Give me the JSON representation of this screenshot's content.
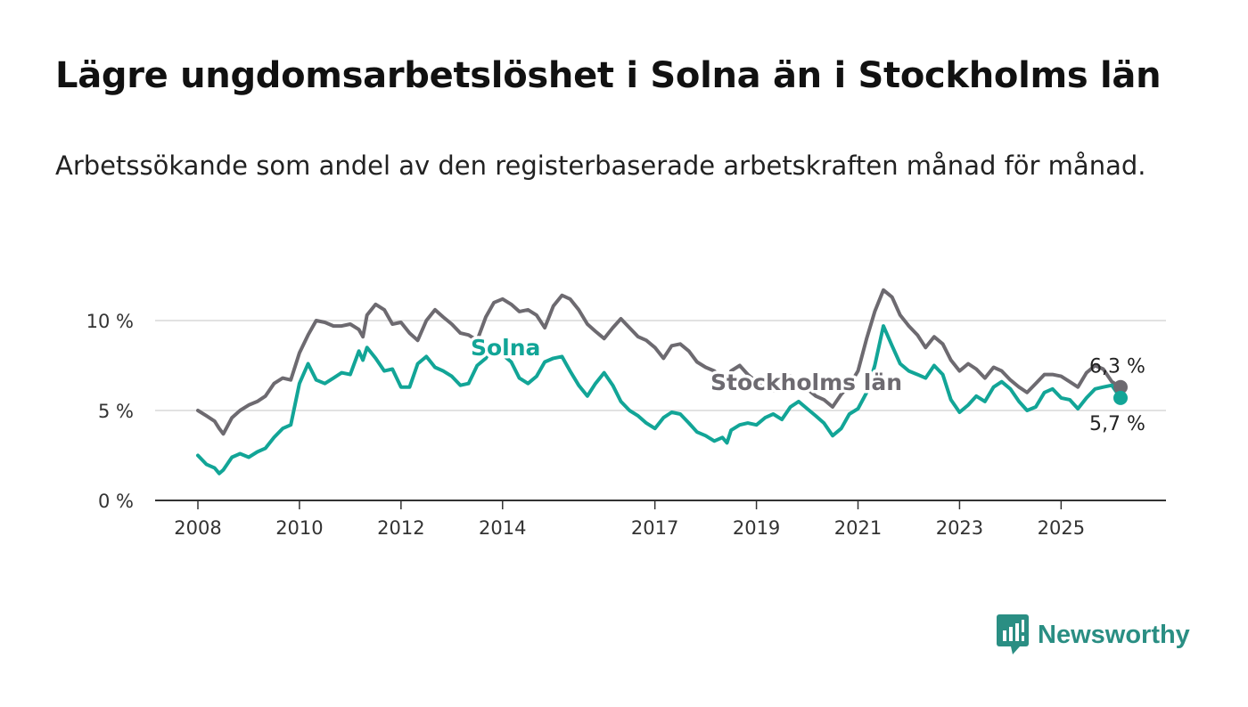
{
  "title": "Lägre ungdomsarbetslöshet i Solna än i Stockholms län",
  "subtitle": "Arbetssökande som andel av den registerbaserade arbetskraften månad för månad.",
  "brand": {
    "name": "Newsworthy",
    "icon": "newsworthy-logo-icon"
  },
  "colors": {
    "solna": "#12a597",
    "stockholm": "#6d6a70",
    "grid": "#d9d9d9",
    "axis": "#333333"
  },
  "chart_data": {
    "type": "line",
    "xlabel": "",
    "ylabel": "",
    "xlim": [
      2007.5,
      2026.2
    ],
    "ylim": [
      0,
      10.5
    ],
    "x_ticks": [
      2008,
      2010,
      2012,
      2014,
      2017,
      2019,
      2021,
      2023,
      2025
    ],
    "x_tick_labels": [
      "2008",
      "2010",
      "2012",
      "2014",
      "2017",
      "2019",
      "2021",
      "2023",
      "2025"
    ],
    "y_ticks": [
      0,
      5,
      10
    ],
    "y_tick_labels": [
      "0 %",
      "5 %",
      "10 %"
    ],
    "grid": "horizontal",
    "legend": "inline",
    "series": [
      {
        "name": "Stockholms län",
        "color": "#6d6a70",
        "end_label": "6,3 %",
        "points": [
          [
            2008.0,
            5.0
          ],
          [
            2008.17,
            4.7
          ],
          [
            2008.33,
            4.4
          ],
          [
            2008.42,
            4.0
          ],
          [
            2008.5,
            3.7
          ],
          [
            2008.67,
            4.6
          ],
          [
            2008.83,
            5.0
          ],
          [
            2009.0,
            5.3
          ],
          [
            2009.17,
            5.5
          ],
          [
            2009.33,
            5.8
          ],
          [
            2009.5,
            6.5
          ],
          [
            2009.67,
            6.8
          ],
          [
            2009.83,
            6.7
          ],
          [
            2010.0,
            8.2
          ],
          [
            2010.17,
            9.2
          ],
          [
            2010.33,
            10.0
          ],
          [
            2010.5,
            9.9
          ],
          [
            2010.67,
            9.7
          ],
          [
            2010.83,
            9.7
          ],
          [
            2011.0,
            9.8
          ],
          [
            2011.17,
            9.5
          ],
          [
            2011.25,
            9.1
          ],
          [
            2011.33,
            10.3
          ],
          [
            2011.5,
            10.9
          ],
          [
            2011.67,
            10.6
          ],
          [
            2011.83,
            9.8
          ],
          [
            2012.0,
            9.9
          ],
          [
            2012.17,
            9.3
          ],
          [
            2012.33,
            8.9
          ],
          [
            2012.5,
            10.0
          ],
          [
            2012.67,
            10.6
          ],
          [
            2012.83,
            10.2
          ],
          [
            2013.0,
            9.8
          ],
          [
            2013.17,
            9.3
          ],
          [
            2013.33,
            9.2
          ],
          [
            2013.5,
            8.9
          ],
          [
            2013.67,
            10.2
          ],
          [
            2013.83,
            11.0
          ],
          [
            2014.0,
            11.2
          ],
          [
            2014.17,
            10.9
          ],
          [
            2014.33,
            10.5
          ],
          [
            2014.5,
            10.6
          ],
          [
            2014.67,
            10.3
          ],
          [
            2014.83,
            9.6
          ],
          [
            2015.0,
            10.8
          ],
          [
            2015.17,
            11.4
          ],
          [
            2015.33,
            11.2
          ],
          [
            2015.5,
            10.6
          ],
          [
            2015.67,
            9.8
          ],
          [
            2015.83,
            9.4
          ],
          [
            2016.0,
            9.0
          ],
          [
            2016.17,
            9.6
          ],
          [
            2016.33,
            10.1
          ],
          [
            2016.5,
            9.6
          ],
          [
            2016.67,
            9.1
          ],
          [
            2016.83,
            8.9
          ],
          [
            2017.0,
            8.5
          ],
          [
            2017.17,
            7.9
          ],
          [
            2017.33,
            8.6
          ],
          [
            2017.5,
            8.7
          ],
          [
            2017.67,
            8.3
          ],
          [
            2017.83,
            7.7
          ],
          [
            2018.0,
            7.4
          ],
          [
            2018.17,
            7.2
          ],
          [
            2018.33,
            6.8
          ],
          [
            2018.42,
            6.5
          ],
          [
            2018.5,
            7.2
          ],
          [
            2018.67,
            7.5
          ],
          [
            2018.83,
            7.0
          ],
          [
            2019.0,
            6.6
          ],
          [
            2019.17,
            6.3
          ],
          [
            2019.33,
            6.1
          ],
          [
            2019.5,
            6.6
          ],
          [
            2019.67,
            6.9
          ],
          [
            2019.83,
            6.5
          ],
          [
            2020.0,
            6.2
          ],
          [
            2020.17,
            5.8
          ],
          [
            2020.33,
            5.6
          ],
          [
            2020.5,
            5.2
          ],
          [
            2020.67,
            5.9
          ],
          [
            2020.83,
            6.4
          ],
          [
            2021.0,
            7.2
          ],
          [
            2021.17,
            9.0
          ],
          [
            2021.33,
            10.5
          ],
          [
            2021.5,
            11.7
          ],
          [
            2021.67,
            11.3
          ],
          [
            2021.83,
            10.3
          ],
          [
            2022.0,
            9.7
          ],
          [
            2022.17,
            9.2
          ],
          [
            2022.33,
            8.5
          ],
          [
            2022.5,
            9.1
          ],
          [
            2022.67,
            8.7
          ],
          [
            2022.83,
            7.8
          ],
          [
            2023.0,
            7.2
          ],
          [
            2023.17,
            7.6
          ],
          [
            2023.33,
            7.3
          ],
          [
            2023.5,
            6.8
          ],
          [
            2023.67,
            7.4
          ],
          [
            2023.83,
            7.2
          ],
          [
            2024.0,
            6.7
          ],
          [
            2024.17,
            6.3
          ],
          [
            2024.33,
            6.0
          ],
          [
            2024.5,
            6.5
          ],
          [
            2024.67,
            7.0
          ],
          [
            2024.83,
            7.0
          ],
          [
            2025.0,
            6.9
          ],
          [
            2025.17,
            6.6
          ],
          [
            2025.33,
            6.3
          ],
          [
            2025.5,
            7.1
          ],
          [
            2025.67,
            7.5
          ],
          [
            2025.83,
            7.3
          ],
          [
            2026.0,
            6.6
          ],
          [
            2026.17,
            6.3
          ]
        ]
      },
      {
        "name": "Solna",
        "color": "#12a597",
        "end_label": "5,7 %",
        "points": [
          [
            2008.0,
            2.5
          ],
          [
            2008.17,
            2.0
          ],
          [
            2008.33,
            1.8
          ],
          [
            2008.42,
            1.5
          ],
          [
            2008.5,
            1.7
          ],
          [
            2008.67,
            2.4
          ],
          [
            2008.83,
            2.6
          ],
          [
            2009.0,
            2.4
          ],
          [
            2009.17,
            2.7
          ],
          [
            2009.33,
            2.9
          ],
          [
            2009.5,
            3.5
          ],
          [
            2009.67,
            4.0
          ],
          [
            2009.83,
            4.2
          ],
          [
            2010.0,
            6.5
          ],
          [
            2010.17,
            7.6
          ],
          [
            2010.33,
            6.7
          ],
          [
            2010.5,
            6.5
          ],
          [
            2010.67,
            6.8
          ],
          [
            2010.83,
            7.1
          ],
          [
            2011.0,
            7.0
          ],
          [
            2011.17,
            8.3
          ],
          [
            2011.25,
            7.8
          ],
          [
            2011.33,
            8.5
          ],
          [
            2011.5,
            7.9
          ],
          [
            2011.67,
            7.2
          ],
          [
            2011.83,
            7.3
          ],
          [
            2012.0,
            6.3
          ],
          [
            2012.17,
            6.3
          ],
          [
            2012.33,
            7.6
          ],
          [
            2012.5,
            8.0
          ],
          [
            2012.67,
            7.4
          ],
          [
            2012.83,
            7.2
          ],
          [
            2013.0,
            6.9
          ],
          [
            2013.17,
            6.4
          ],
          [
            2013.33,
            6.5
          ],
          [
            2013.5,
            7.5
          ],
          [
            2013.67,
            7.9
          ],
          [
            2013.83,
            8.7
          ],
          [
            2014.0,
            8.1
          ],
          [
            2014.17,
            7.7
          ],
          [
            2014.33,
            6.8
          ],
          [
            2014.5,
            6.5
          ],
          [
            2014.67,
            6.9
          ],
          [
            2014.83,
            7.7
          ],
          [
            2015.0,
            7.9
          ],
          [
            2015.17,
            8.0
          ],
          [
            2015.33,
            7.2
          ],
          [
            2015.5,
            6.4
          ],
          [
            2015.67,
            5.8
          ],
          [
            2015.83,
            6.5
          ],
          [
            2016.0,
            7.1
          ],
          [
            2016.17,
            6.4
          ],
          [
            2016.33,
            5.5
          ],
          [
            2016.5,
            5.0
          ],
          [
            2016.67,
            4.7
          ],
          [
            2016.83,
            4.3
          ],
          [
            2017.0,
            4.0
          ],
          [
            2017.17,
            4.6
          ],
          [
            2017.33,
            4.9
          ],
          [
            2017.5,
            4.8
          ],
          [
            2017.67,
            4.3
          ],
          [
            2017.83,
            3.8
          ],
          [
            2018.0,
            3.6
          ],
          [
            2018.17,
            3.3
          ],
          [
            2018.33,
            3.5
          ],
          [
            2018.42,
            3.2
          ],
          [
            2018.5,
            3.9
          ],
          [
            2018.67,
            4.2
          ],
          [
            2018.83,
            4.3
          ],
          [
            2019.0,
            4.2
          ],
          [
            2019.17,
            4.6
          ],
          [
            2019.33,
            4.8
          ],
          [
            2019.5,
            4.5
          ],
          [
            2019.67,
            5.2
          ],
          [
            2019.83,
            5.5
          ],
          [
            2020.0,
            5.1
          ],
          [
            2020.17,
            4.7
          ],
          [
            2020.33,
            4.3
          ],
          [
            2020.5,
            3.6
          ],
          [
            2020.67,
            4.0
          ],
          [
            2020.83,
            4.8
          ],
          [
            2021.0,
            5.1
          ],
          [
            2021.17,
            6.0
          ],
          [
            2021.33,
            7.5
          ],
          [
            2021.5,
            9.7
          ],
          [
            2021.67,
            8.6
          ],
          [
            2021.83,
            7.6
          ],
          [
            2022.0,
            7.2
          ],
          [
            2022.17,
            7.0
          ],
          [
            2022.33,
            6.8
          ],
          [
            2022.5,
            7.5
          ],
          [
            2022.67,
            7.0
          ],
          [
            2022.83,
            5.6
          ],
          [
            2023.0,
            4.9
          ],
          [
            2023.17,
            5.3
          ],
          [
            2023.33,
            5.8
          ],
          [
            2023.5,
            5.5
          ],
          [
            2023.67,
            6.3
          ],
          [
            2023.83,
            6.6
          ],
          [
            2024.0,
            6.2
          ],
          [
            2024.17,
            5.5
          ],
          [
            2024.33,
            5.0
          ],
          [
            2024.5,
            5.2
          ],
          [
            2024.67,
            6.0
          ],
          [
            2024.83,
            6.2
          ],
          [
            2025.0,
            5.7
          ],
          [
            2025.17,
            5.6
          ],
          [
            2025.33,
            5.1
          ],
          [
            2025.5,
            5.7
          ],
          [
            2025.67,
            6.2
          ],
          [
            2025.83,
            6.3
          ],
          [
            2026.0,
            6.4
          ],
          [
            2026.17,
            5.7
          ]
        ]
      }
    ]
  }
}
